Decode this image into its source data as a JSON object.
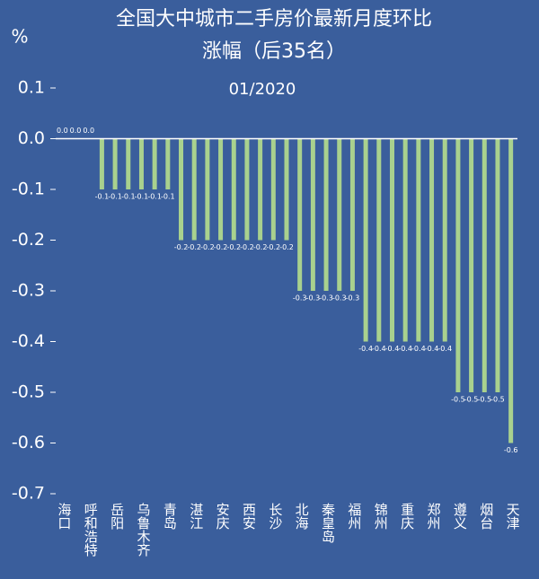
{
  "chart_data": {
    "type": "bar",
    "title": [
      "全国大中城市二手房价最新月度环比",
      "涨幅（后35名）"
    ],
    "subtitle": "01/2020",
    "y_label": "%",
    "categories": [
      "海口",
      null,
      "呼和浩特",
      null,
      "岳阳",
      null,
      "乌鲁木齐",
      null,
      "青岛",
      null,
      "湛江",
      null,
      "安庆",
      null,
      "西安",
      null,
      "长沙",
      null,
      "北海",
      null,
      "秦皇岛",
      null,
      "福州",
      null,
      "锦州",
      null,
      "重庆",
      null,
      "郑州",
      null,
      "遵义",
      null,
      "烟台",
      null,
      "天津"
    ],
    "values": [
      0,
      0,
      0,
      -0.1,
      -0.1,
      -0.1,
      -0.1,
      -0.1,
      -0.1,
      -0.2,
      -0.2,
      -0.2,
      -0.2,
      -0.2,
      -0.2,
      -0.2,
      -0.2,
      -0.2,
      -0.3,
      -0.3,
      -0.3,
      -0.3,
      -0.3,
      -0.4,
      -0.4,
      -0.4,
      -0.4,
      -0.4,
      -0.4,
      -0.4,
      -0.5,
      -0.5,
      -0.5,
      -0.5,
      -0.6
    ],
    "value_labels": [
      "0.0",
      "0.0",
      "0.0",
      "-0.1",
      "-0.1",
      "-0.1",
      "-0.1",
      "-0.1",
      "-0.1",
      "-0.2",
      "-0.2",
      "-0.2",
      "-0.2",
      "-0.2",
      "-0.2",
      "-0.2",
      "-0.2",
      "-0.2",
      "-0.3",
      "-0.3",
      "-0.3",
      "-0.3",
      "-0.3",
      "-0.4",
      "-0.4",
      "-0.4",
      "-0.4",
      "-0.4",
      "-0.4",
      "-0.4",
      "-0.5",
      "-0.5",
      "-0.5",
      "-0.5",
      "-0.6"
    ],
    "color": "#a9d18e",
    "ylim": [
      -0.7,
      0.1
    ],
    "yticks": [
      0.1,
      {
        "value": 0,
        "label": "0.0"
      },
      -0.1,
      -0.2,
      -0.3,
      -0.4,
      -0.5,
      -0.6,
      -0.7
    ]
  }
}
